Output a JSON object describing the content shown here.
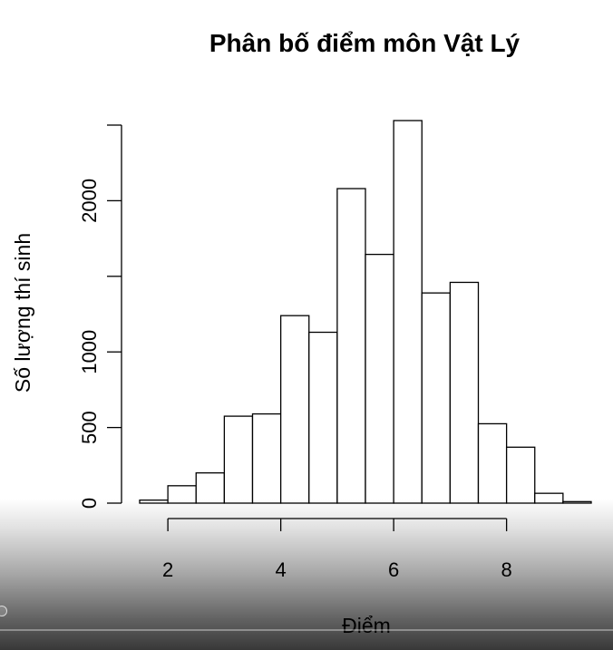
{
  "chart_data": {
    "type": "bar",
    "title": "Phân bố điểm môn Vật Lý",
    "xlabel": "Điểm",
    "ylabel": "Số lượng thí sinh",
    "bin_edges": [
      1.5,
      2.0,
      2.5,
      3.0,
      3.5,
      4.0,
      4.5,
      5.0,
      5.5,
      6.0,
      6.5,
      7.0,
      7.5,
      8.0,
      8.5,
      9.0,
      9.5
    ],
    "values": [
      20,
      115,
      200,
      575,
      590,
      1240,
      1130,
      2080,
      1645,
      2530,
      1390,
      1460,
      525,
      370,
      65,
      10
    ],
    "xlim": [
      1.5,
      9.5
    ],
    "ylim": [
      0,
      2500
    ],
    "x_ticks": [
      2,
      4,
      6,
      8
    ],
    "x_tick_labels": [
      "2",
      "4",
      "6",
      "8"
    ],
    "y_ticks": [
      0,
      500,
      1000,
      1500,
      2000,
      2500
    ],
    "y_tick_labels": [
      "0",
      "500",
      "1000",
      "",
      "2000",
      ""
    ],
    "grid": false,
    "legend": "none"
  },
  "colors": {
    "bar_fill": "#ffffff",
    "bar_stroke": "#000000",
    "overlay": "#000000"
  },
  "overlay": {
    "icon": "player-handle-icon"
  }
}
